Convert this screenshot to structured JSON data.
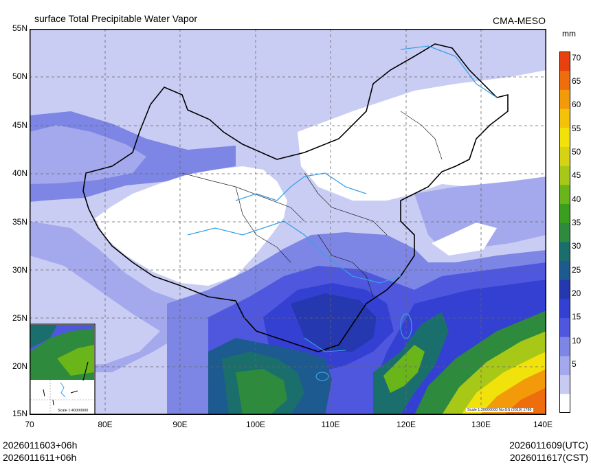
{
  "header": {
    "title": "surface Total Precipitable Water Vapor",
    "source": "CMA-MESO"
  },
  "colorbar": {
    "unit": "mm",
    "ticks": [
      "70",
      "65",
      "60",
      "55",
      "50",
      "45",
      "40",
      "35",
      "30",
      "25",
      "20",
      "15",
      "10",
      "5"
    ],
    "colors": [
      "#ffffff",
      "#c7cbf2",
      "#a3a9ec",
      "#7d86e4",
      "#4f57df",
      "#3340d2",
      "#2538b0",
      "#1d5a8f",
      "#1a6f6d",
      "#2e8a3c",
      "#3a9e1e",
      "#6ab51a",
      "#a8c817",
      "#d6d314",
      "#f2e20c",
      "#f5c20a",
      "#f39a0b",
      "#ee6e0d",
      "#e8400e"
    ]
  },
  "map": {
    "lat_labels": [
      "55N",
      "50N",
      "45N",
      "40N",
      "35N",
      "30N",
      "25N",
      "20N",
      "15N"
    ],
    "lon_labels": [
      "70",
      "80E",
      "90E",
      "100E",
      "110E",
      "120E",
      "130E",
      "140E"
    ],
    "scale_main": "Scale 1:20000000 No.GS (2019) 1786",
    "scale_inset": "Scale 1:40000000"
  },
  "footer": {
    "init_left": "2026011603+06h",
    "valid_left": "2026011611+06h",
    "init_right": "2026011609(UTC)",
    "valid_right": "2026011617(CST)"
  }
}
